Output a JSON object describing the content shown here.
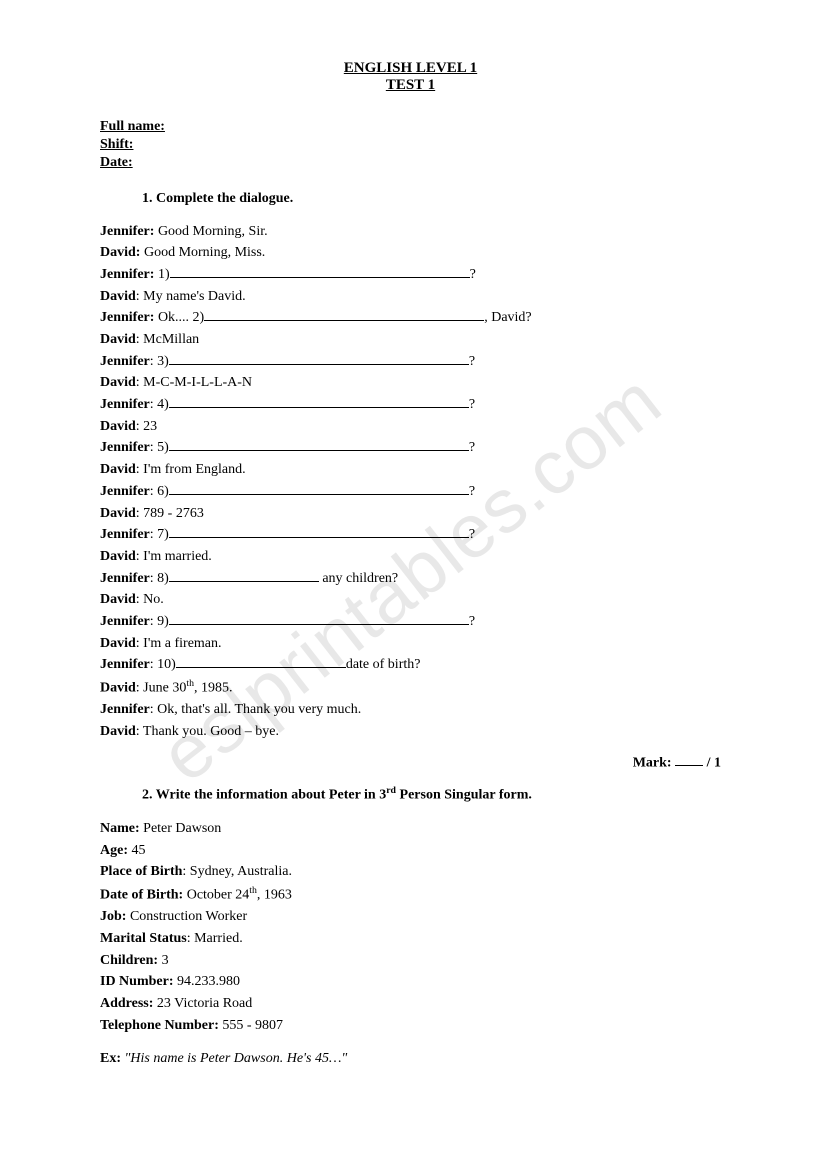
{
  "title": {
    "line1": "ENGLISH LEVEL 1",
    "line2": "TEST 1"
  },
  "header": {
    "fullname": "Full name:",
    "shift": "Shift:",
    "date": "Date:"
  },
  "section1": {
    "heading": "1.   Complete the dialogue.",
    "lines": [
      {
        "speaker": "Jennifer:",
        "text": " Good Morning, Sir."
      },
      {
        "speaker": "David:",
        "text": " Good Morning, Miss."
      },
      {
        "speaker": "Jennifer:",
        "text": " 1)",
        "blank_width": 300,
        "after": "?"
      },
      {
        "speaker": "David",
        "text": ": My name's David."
      },
      {
        "speaker": "Jennifer:",
        "text": " Ok.... 2)",
        "blank_width": 280,
        "after": ", David?"
      },
      {
        "speaker": "David",
        "text": ": McMillan"
      },
      {
        "speaker": "Jennifer",
        "text": ": 3)",
        "blank_width": 300,
        "after": "?"
      },
      {
        "speaker": "David",
        "text": ": M-C-M-I-L-L-A-N"
      },
      {
        "speaker": "Jennifer",
        "text": ": 4)",
        "blank_width": 300,
        "after": "?"
      },
      {
        "speaker": "David",
        "text": ": 23"
      },
      {
        "speaker": "Jennifer",
        "text": ": 5)",
        "blank_width": 300,
        "after": "?"
      },
      {
        "speaker": "David",
        "text": ": I'm from England."
      },
      {
        "speaker": "Jennifer",
        "text": ": 6)",
        "blank_width": 300,
        "after": "?"
      },
      {
        "speaker": "David",
        "text": ": 789 - 2763"
      },
      {
        "speaker": "Jennifer",
        "text": ": 7)",
        "blank_width": 300,
        "after": "?"
      },
      {
        "speaker": "David",
        "text": ": I'm married."
      },
      {
        "speaker": "Jennifer",
        "text": ": 8)",
        "blank_width": 150,
        "after": " any children?"
      },
      {
        "speaker": "David",
        "text": ": No."
      },
      {
        "speaker": "Jennifer",
        "text": ": 9)",
        "blank_width": 300,
        "after": "?"
      },
      {
        "speaker": "David",
        "text": ": I'm a fireman."
      },
      {
        "speaker": "Jennifer",
        "text": ": 10)",
        "blank_width": 170,
        "after": "date of birth?"
      },
      {
        "speaker": "David",
        "text": ": June 30",
        "sup": "th",
        "after_sup": ", 1985."
      },
      {
        "speaker": "Jennifer",
        "text": ": Ok, that's all. Thank you very much."
      },
      {
        "speaker": "David",
        "text": ": Thank you. Good – bye."
      }
    ]
  },
  "mark": {
    "label": "Mark:  ",
    "blank_width": 28,
    "after": " / 1"
  },
  "section2": {
    "heading_prefix": "2.   Write the information about Peter in 3",
    "heading_sup": "rd",
    "heading_suffix": " Person Singular form.",
    "info": [
      {
        "label": "Name:",
        "value": " Peter Dawson"
      },
      {
        "label": "Age:",
        "value": " 45"
      },
      {
        "label": "Place of Birth",
        "value": ": Sydney, Australia."
      },
      {
        "label": "Date of Birth:",
        "value": " October 24",
        "sup": "th",
        "after_sup": ", 1963"
      },
      {
        "label": "Job:",
        "value": " Construction Worker"
      },
      {
        "label": "Marital Status",
        "value": ": Married."
      },
      {
        "label": "Children:",
        "value": " 3"
      },
      {
        "label": "ID Number:",
        "value": " 94.233.980"
      },
      {
        "label": "Address:",
        "value": " 23 Victoria Road"
      },
      {
        "label": "Telephone Number:",
        "value": " 555 - 9807"
      }
    ],
    "example_label": "Ex: ",
    "example_text": "\"His name is Peter Dawson. He's 45…\""
  },
  "watermark": "eslprintables.com"
}
